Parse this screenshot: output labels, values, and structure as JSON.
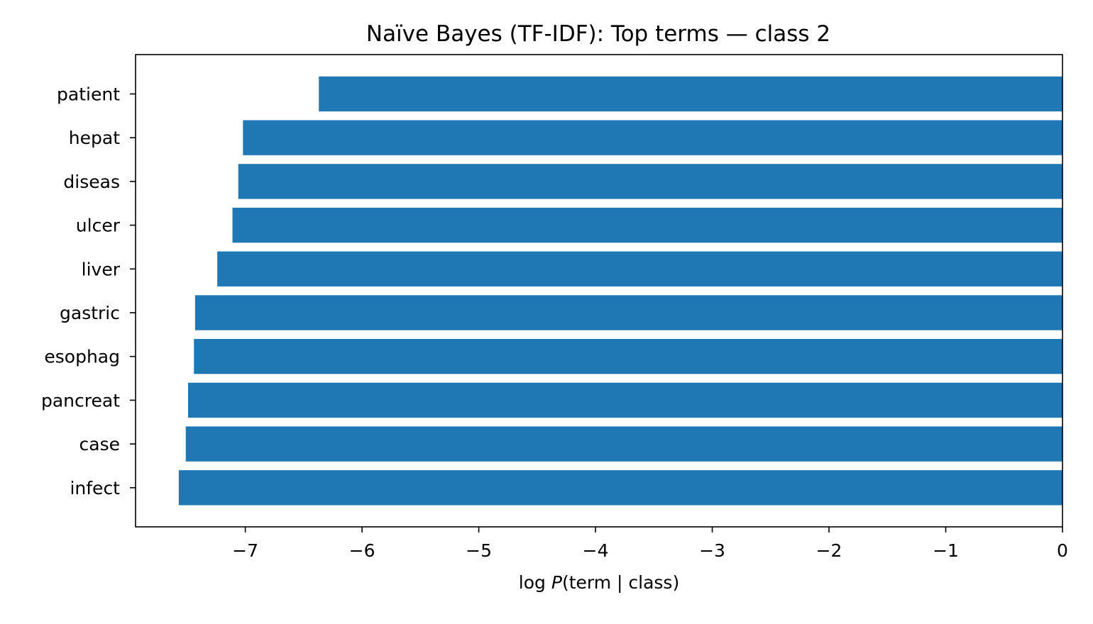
{
  "chart_data": {
    "type": "bar",
    "orientation": "horizontal",
    "title": "Naïve Bayes (TF-IDF): Top terms — class 2",
    "xlabel": "log P(term | class)",
    "xlabel_parts": {
      "prefix": "log ",
      "italic": "P",
      "suffix": "(term | class)"
    },
    "ylabel": "",
    "categories": [
      "patient",
      "hepat",
      "diseas",
      "ulcer",
      "liver",
      "gastric",
      "esophag",
      "pancreat",
      "case",
      "infect"
    ],
    "values": [
      -6.37,
      -7.02,
      -7.06,
      -7.11,
      -7.24,
      -7.43,
      -7.44,
      -7.49,
      -7.51,
      -7.57
    ],
    "xlim": [
      -7.94,
      0
    ],
    "xticks": [
      -7,
      -6,
      -5,
      -4,
      -3,
      -2,
      -1,
      0
    ],
    "xtick_labels": [
      "−7",
      "−6",
      "−5",
      "−4",
      "−3",
      "−2",
      "−1",
      "0"
    ],
    "bar_color": "#1f77b4",
    "grid": false,
    "legend": "none"
  }
}
